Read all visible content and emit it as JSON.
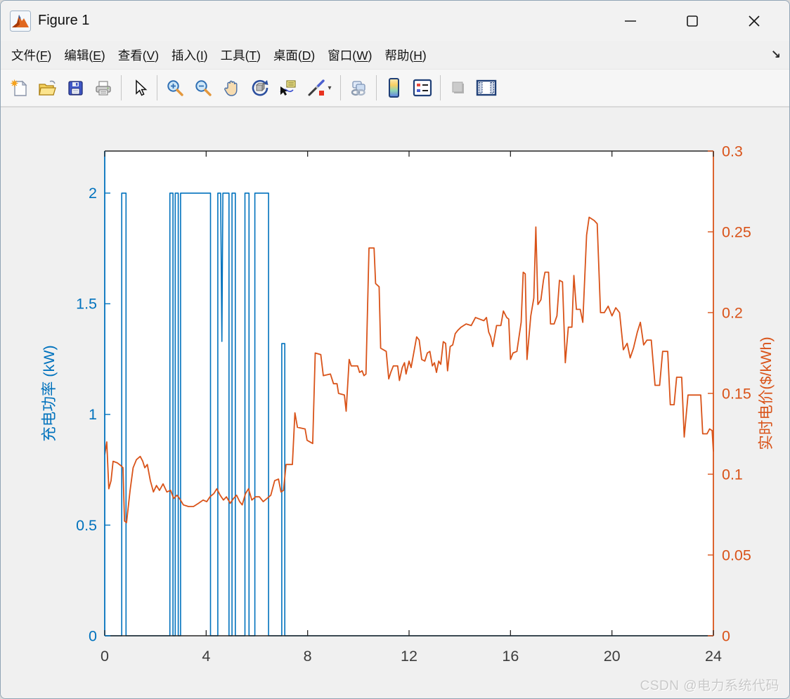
{
  "window": {
    "title": "Figure 1",
    "controls": [
      {
        "id": "minimize",
        "glyph": "minimize"
      },
      {
        "id": "maximize",
        "glyph": "maximize"
      },
      {
        "id": "close",
        "glyph": "close"
      }
    ]
  },
  "menu": {
    "items": [
      {
        "id": "file",
        "label": "文件",
        "mnemonic": "F"
      },
      {
        "id": "edit",
        "label": "编辑",
        "mnemonic": "E"
      },
      {
        "id": "view",
        "label": "查看",
        "mnemonic": "V"
      },
      {
        "id": "insert",
        "label": "插入",
        "mnemonic": "I"
      },
      {
        "id": "tools",
        "label": "工具",
        "mnemonic": "T"
      },
      {
        "id": "desktop",
        "label": "桌面",
        "mnemonic": "D"
      },
      {
        "id": "window",
        "label": "窗口",
        "mnemonic": "W"
      },
      {
        "id": "help",
        "label": "帮助",
        "mnemonic": "H"
      }
    ],
    "dock_arrow": "↘"
  },
  "toolbar": {
    "buttons": [
      {
        "name": "new-figure"
      },
      {
        "name": "open-file"
      },
      {
        "name": "save-figure"
      },
      {
        "name": "print-figure"
      },
      {
        "sep": true
      },
      {
        "name": "edit-plot"
      },
      {
        "sep": true
      },
      {
        "name": "zoom-in"
      },
      {
        "name": "zoom-out"
      },
      {
        "name": "pan"
      },
      {
        "name": "rotate-3d"
      },
      {
        "name": "data-cursor"
      },
      {
        "name": "brush",
        "caret": true
      },
      {
        "sep": true
      },
      {
        "name": "link-plot"
      },
      {
        "sep": true
      },
      {
        "name": "insert-colorbar"
      },
      {
        "name": "insert-legend"
      },
      {
        "sep": true
      },
      {
        "name": "hide-plot-tools",
        "disabled": true
      },
      {
        "name": "show-plot-tools-dock"
      }
    ]
  },
  "watermark": "CSDN @电力系统代码",
  "chart_data": {
    "type": "line",
    "title": "",
    "xlabel": "",
    "xlim": [
      0,
      24
    ],
    "x_ticks": [
      0,
      4,
      8,
      12,
      16,
      20,
      24
    ],
    "grid": false,
    "legend": "none",
    "left_axis": {
      "label": "充电功率 (kW)",
      "color": "#0072BD",
      "ticks": [
        0,
        0.5,
        1,
        1.5,
        2
      ],
      "lim": [
        0,
        2.19
      ]
    },
    "right_axis": {
      "label": "实时电价($/kWh)",
      "color": "#D95319",
      "ticks": [
        0,
        0.05,
        0.1,
        0.15,
        0.2,
        0.25,
        0.3
      ],
      "lim": [
        0,
        0.3
      ]
    },
    "x_axis_color": "#262626",
    "series": [
      {
        "name": "充电功率",
        "axis": "left",
        "color": "#0072BD",
        "style": "step-pulse",
        "points": [
          [
            0,
            0
          ],
          [
            0.67,
            0
          ],
          [
            0.67,
            2
          ],
          [
            0.84,
            2
          ],
          [
            0.84,
            0
          ],
          [
            2.57,
            0
          ],
          [
            2.57,
            2
          ],
          [
            2.69,
            2
          ],
          [
            2.69,
            0
          ],
          [
            2.78,
            0
          ],
          [
            2.78,
            2
          ],
          [
            2.9,
            2
          ],
          [
            2.9,
            0
          ],
          [
            2.99,
            0
          ],
          [
            2.99,
            2
          ],
          [
            4.17,
            2
          ],
          [
            4.17,
            0
          ],
          [
            4.46,
            0
          ],
          [
            4.46,
            2
          ],
          [
            4.57,
            2
          ],
          [
            4.62,
            1.33
          ],
          [
            4.66,
            2
          ],
          [
            4.9,
            2
          ],
          [
            4.9,
            0
          ],
          [
            5.02,
            0
          ],
          [
            5.02,
            2
          ],
          [
            5.15,
            2
          ],
          [
            5.15,
            0
          ],
          [
            5.53,
            0
          ],
          [
            5.53,
            2
          ],
          [
            5.69,
            2
          ],
          [
            5.69,
            0
          ],
          [
            5.92,
            0
          ],
          [
            5.92,
            2
          ],
          [
            6.46,
            2
          ],
          [
            6.46,
            0
          ],
          [
            6.98,
            0
          ],
          [
            6.98,
            1.32
          ],
          [
            7.1,
            1.32
          ],
          [
            7.1,
            0
          ],
          [
            24,
            0
          ]
        ]
      },
      {
        "name": "实时电价",
        "axis": "right",
        "color": "#D95319",
        "style": "line",
        "points": [
          [
            0,
            0.112
          ],
          [
            0.08,
            0.12
          ],
          [
            0.16,
            0.091
          ],
          [
            0.25,
            0.096
          ],
          [
            0.33,
            0.108
          ],
          [
            0.5,
            0.107
          ],
          [
            0.66,
            0.105
          ],
          [
            0.72,
            0.104
          ],
          [
            0.78,
            0.071
          ],
          [
            0.86,
            0.07
          ],
          [
            1,
            0.09
          ],
          [
            1.12,
            0.104
          ],
          [
            1.25,
            0.109
          ],
          [
            1.4,
            0.111
          ],
          [
            1.5,
            0.108
          ],
          [
            1.58,
            0.104
          ],
          [
            1.68,
            0.106
          ],
          [
            1.8,
            0.096
          ],
          [
            1.92,
            0.089
          ],
          [
            2.04,
            0.093
          ],
          [
            2.16,
            0.09
          ],
          [
            2.3,
            0.094
          ],
          [
            2.45,
            0.089
          ],
          [
            2.6,
            0.09
          ],
          [
            2.72,
            0.085
          ],
          [
            2.85,
            0.087
          ],
          [
            2.95,
            0.085
          ],
          [
            3.1,
            0.081
          ],
          [
            3.3,
            0.08
          ],
          [
            3.5,
            0.08
          ],
          [
            3.7,
            0.082
          ],
          [
            3.88,
            0.084
          ],
          [
            4.02,
            0.083
          ],
          [
            4.15,
            0.086
          ],
          [
            4.3,
            0.088
          ],
          [
            4.42,
            0.091
          ],
          [
            4.55,
            0.087
          ],
          [
            4.68,
            0.084
          ],
          [
            4.8,
            0.086
          ],
          [
            4.95,
            0.082
          ],
          [
            5.08,
            0.085
          ],
          [
            5.2,
            0.087
          ],
          [
            5.32,
            0.083
          ],
          [
            5.42,
            0.081
          ],
          [
            5.55,
            0.088
          ],
          [
            5.67,
            0.091
          ],
          [
            5.8,
            0.084
          ],
          [
            5.95,
            0.086
          ],
          [
            6.1,
            0.086
          ],
          [
            6.25,
            0.083
          ],
          [
            6.4,
            0.085
          ],
          [
            6.55,
            0.087
          ],
          [
            6.7,
            0.096
          ],
          [
            6.85,
            0.097
          ],
          [
            6.95,
            0.089
          ],
          [
            7.05,
            0.09
          ],
          [
            7.15,
            0.106
          ],
          [
            7.4,
            0.106
          ],
          [
            7.5,
            0.138
          ],
          [
            7.6,
            0.129
          ],
          [
            7.9,
            0.128
          ],
          [
            7.98,
            0.121
          ],
          [
            8.2,
            0.119
          ],
          [
            8.3,
            0.175
          ],
          [
            8.52,
            0.174
          ],
          [
            8.62,
            0.161
          ],
          [
            8.9,
            0.162
          ],
          [
            9.02,
            0.156
          ],
          [
            9.16,
            0.156
          ],
          [
            9.22,
            0.15
          ],
          [
            9.45,
            0.149
          ],
          [
            9.52,
            0.139
          ],
          [
            9.64,
            0.171
          ],
          [
            9.72,
            0.167
          ],
          [
            9.97,
            0.167
          ],
          [
            10.05,
            0.163
          ],
          [
            10.15,
            0.164
          ],
          [
            10.22,
            0.161
          ],
          [
            10.3,
            0.162
          ],
          [
            10.42,
            0.24
          ],
          [
            10.62,
            0.24
          ],
          [
            10.68,
            0.218
          ],
          [
            10.82,
            0.216
          ],
          [
            10.88,
            0.178
          ],
          [
            11.1,
            0.176
          ],
          [
            11.2,
            0.159
          ],
          [
            11.28,
            0.163
          ],
          [
            11.38,
            0.167
          ],
          [
            11.55,
            0.167
          ],
          [
            11.62,
            0.158
          ],
          [
            11.73,
            0.166
          ],
          [
            11.82,
            0.169
          ],
          [
            11.88,
            0.162
          ],
          [
            12,
            0.17
          ],
          [
            12.08,
            0.166
          ],
          [
            12.3,
            0.185
          ],
          [
            12.4,
            0.183
          ],
          [
            12.5,
            0.171
          ],
          [
            12.62,
            0.17
          ],
          [
            12.72,
            0.175
          ],
          [
            12.82,
            0.176
          ],
          [
            12.92,
            0.167
          ],
          [
            13,
            0.169
          ],
          [
            13.08,
            0.163
          ],
          [
            13.17,
            0.17
          ],
          [
            13.25,
            0.168
          ],
          [
            13.35,
            0.182
          ],
          [
            13.44,
            0.181
          ],
          [
            13.52,
            0.164
          ],
          [
            13.62,
            0.179
          ],
          [
            13.72,
            0.18
          ],
          [
            13.82,
            0.187
          ],
          [
            13.92,
            0.189
          ],
          [
            14.05,
            0.191
          ],
          [
            14.25,
            0.193
          ],
          [
            14.45,
            0.192
          ],
          [
            14.62,
            0.197
          ],
          [
            14.78,
            0.196
          ],
          [
            14.95,
            0.195
          ],
          [
            15.05,
            0.197
          ],
          [
            15.14,
            0.188
          ],
          [
            15.22,
            0.185
          ],
          [
            15.3,
            0.179
          ],
          [
            15.45,
            0.192
          ],
          [
            15.62,
            0.192
          ],
          [
            15.72,
            0.201
          ],
          [
            15.85,
            0.197
          ],
          [
            15.93,
            0.196
          ],
          [
            16,
            0.171
          ],
          [
            16.1,
            0.175
          ],
          [
            16.25,
            0.176
          ],
          [
            16.42,
            0.194
          ],
          [
            16.5,
            0.225
          ],
          [
            16.58,
            0.224
          ],
          [
            16.65,
            0.171
          ],
          [
            16.8,
            0.198
          ],
          [
            16.92,
            0.209
          ],
          [
            17,
            0.253
          ],
          [
            17.08,
            0.205
          ],
          [
            17.2,
            0.208
          ],
          [
            17.3,
            0.22
          ],
          [
            17.36,
            0.225
          ],
          [
            17.5,
            0.225
          ],
          [
            17.58,
            0.193
          ],
          [
            17.72,
            0.193
          ],
          [
            17.83,
            0.198
          ],
          [
            17.93,
            0.22
          ],
          [
            18.05,
            0.219
          ],
          [
            18.16,
            0.169
          ],
          [
            18.28,
            0.191
          ],
          [
            18.42,
            0.191
          ],
          [
            18.5,
            0.223
          ],
          [
            18.6,
            0.202
          ],
          [
            18.75,
            0.202
          ],
          [
            18.85,
            0.194
          ],
          [
            19,
            0.248
          ],
          [
            19.1,
            0.259
          ],
          [
            19.3,
            0.257
          ],
          [
            19.42,
            0.255
          ],
          [
            19.55,
            0.2
          ],
          [
            19.7,
            0.2
          ],
          [
            19.85,
            0.204
          ],
          [
            20,
            0.198
          ],
          [
            20.15,
            0.203
          ],
          [
            20.3,
            0.2
          ],
          [
            20.45,
            0.177
          ],
          [
            20.6,
            0.181
          ],
          [
            20.72,
            0.172
          ],
          [
            20.85,
            0.178
          ],
          [
            21,
            0.188
          ],
          [
            21.12,
            0.194
          ],
          [
            21.25,
            0.18
          ],
          [
            21.38,
            0.183
          ],
          [
            21.55,
            0.183
          ],
          [
            21.7,
            0.155
          ],
          [
            21.88,
            0.155
          ],
          [
            22,
            0.176
          ],
          [
            22.2,
            0.176
          ],
          [
            22.3,
            0.143
          ],
          [
            22.45,
            0.143
          ],
          [
            22.55,
            0.16
          ],
          [
            22.75,
            0.16
          ],
          [
            22.85,
            0.123
          ],
          [
            23,
            0.149
          ],
          [
            23.5,
            0.149
          ],
          [
            23.58,
            0.125
          ],
          [
            23.75,
            0.125
          ],
          [
            23.85,
            0.128
          ],
          [
            23.95,
            0.127
          ],
          [
            24,
            0.114
          ]
        ]
      }
    ]
  }
}
